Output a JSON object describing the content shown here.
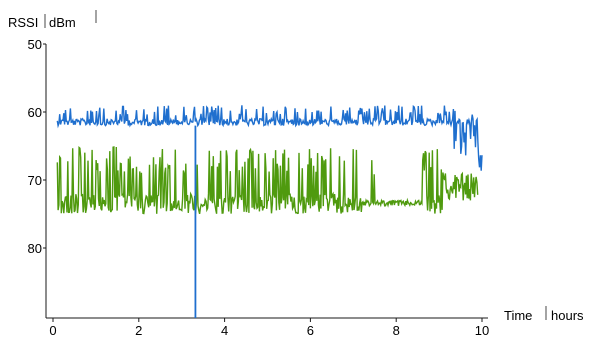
{
  "chart_data": {
    "type": "line",
    "title": "",
    "ylabel": "RSSI",
    "yunit": "dBm",
    "xlabel": "Time",
    "xunit": "hours",
    "xlim": [
      0,
      10
    ],
    "ylim": [
      50,
      90
    ],
    "y_inverted": true,
    "grid": false,
    "x_ticks": [
      0,
      2,
      4,
      6,
      8,
      10
    ],
    "y_ticks": [
      50,
      60,
      70,
      80
    ],
    "x_tick_labels": [
      "0",
      "2",
      "4",
      "6",
      "8",
      "10"
    ],
    "y_tick_labels": [
      "50",
      "60",
      "70",
      "80"
    ],
    "marker_x": 3.32,
    "series": [
      {
        "color": "#1f6fce",
        "x_range": [
          0.1,
          10.0
        ],
        "baseline": 62,
        "spike_min": 59,
        "upper_band": [
          61,
          62
        ],
        "end_dip": 69
      },
      {
        "color": "#4f9a0e",
        "x_range": [
          0.1,
          9.9
        ],
        "baseline": 74,
        "spike_min": 65,
        "upper_band": [
          72,
          75
        ],
        "end_level": 73
      }
    ]
  }
}
